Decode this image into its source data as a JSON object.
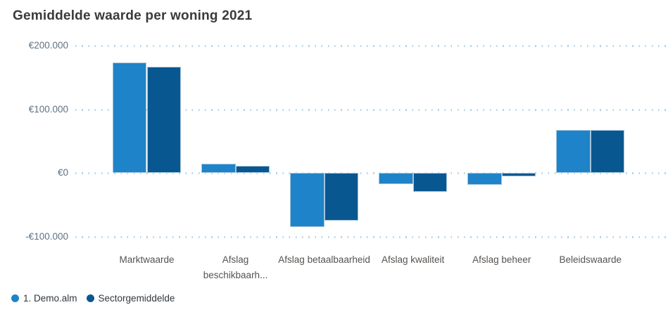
{
  "chart_data": {
    "type": "bar",
    "title": "Gemiddelde waarde per woning 2021",
    "categories": [
      "Marktwaarde",
      "Afslag beschikbaarh...",
      "Afslag betaalbaarheid",
      "Afslag kwaliteit",
      "Afslag beheer",
      "Beleidswaarde"
    ],
    "series": [
      {
        "name": "1. Demo.alm",
        "color": "#1e83c8",
        "values": [
          173000,
          14500,
          -85000,
          -17500,
          -18500,
          67000
        ]
      },
      {
        "name": "Sectorgemiddelde",
        "color": "#095791",
        "values": [
          166500,
          11500,
          -75500,
          -29500,
          -5500,
          67500
        ]
      }
    ],
    "y_ticks": [
      {
        "label": "€200.000",
        "value": 200000
      },
      {
        "label": "€100.000",
        "value": 100000
      },
      {
        "label": "€0",
        "value": 0
      },
      {
        "label": "-€100.000",
        "value": -100000
      }
    ],
    "ylim": [
      -100000,
      200000
    ],
    "xlabel": "",
    "ylabel": "",
    "grid": "dotted-horizontal",
    "legend_position": "bottom-left",
    "grid_color": "#aed4ef",
    "bar_border_color": "#a3c4dc"
  }
}
